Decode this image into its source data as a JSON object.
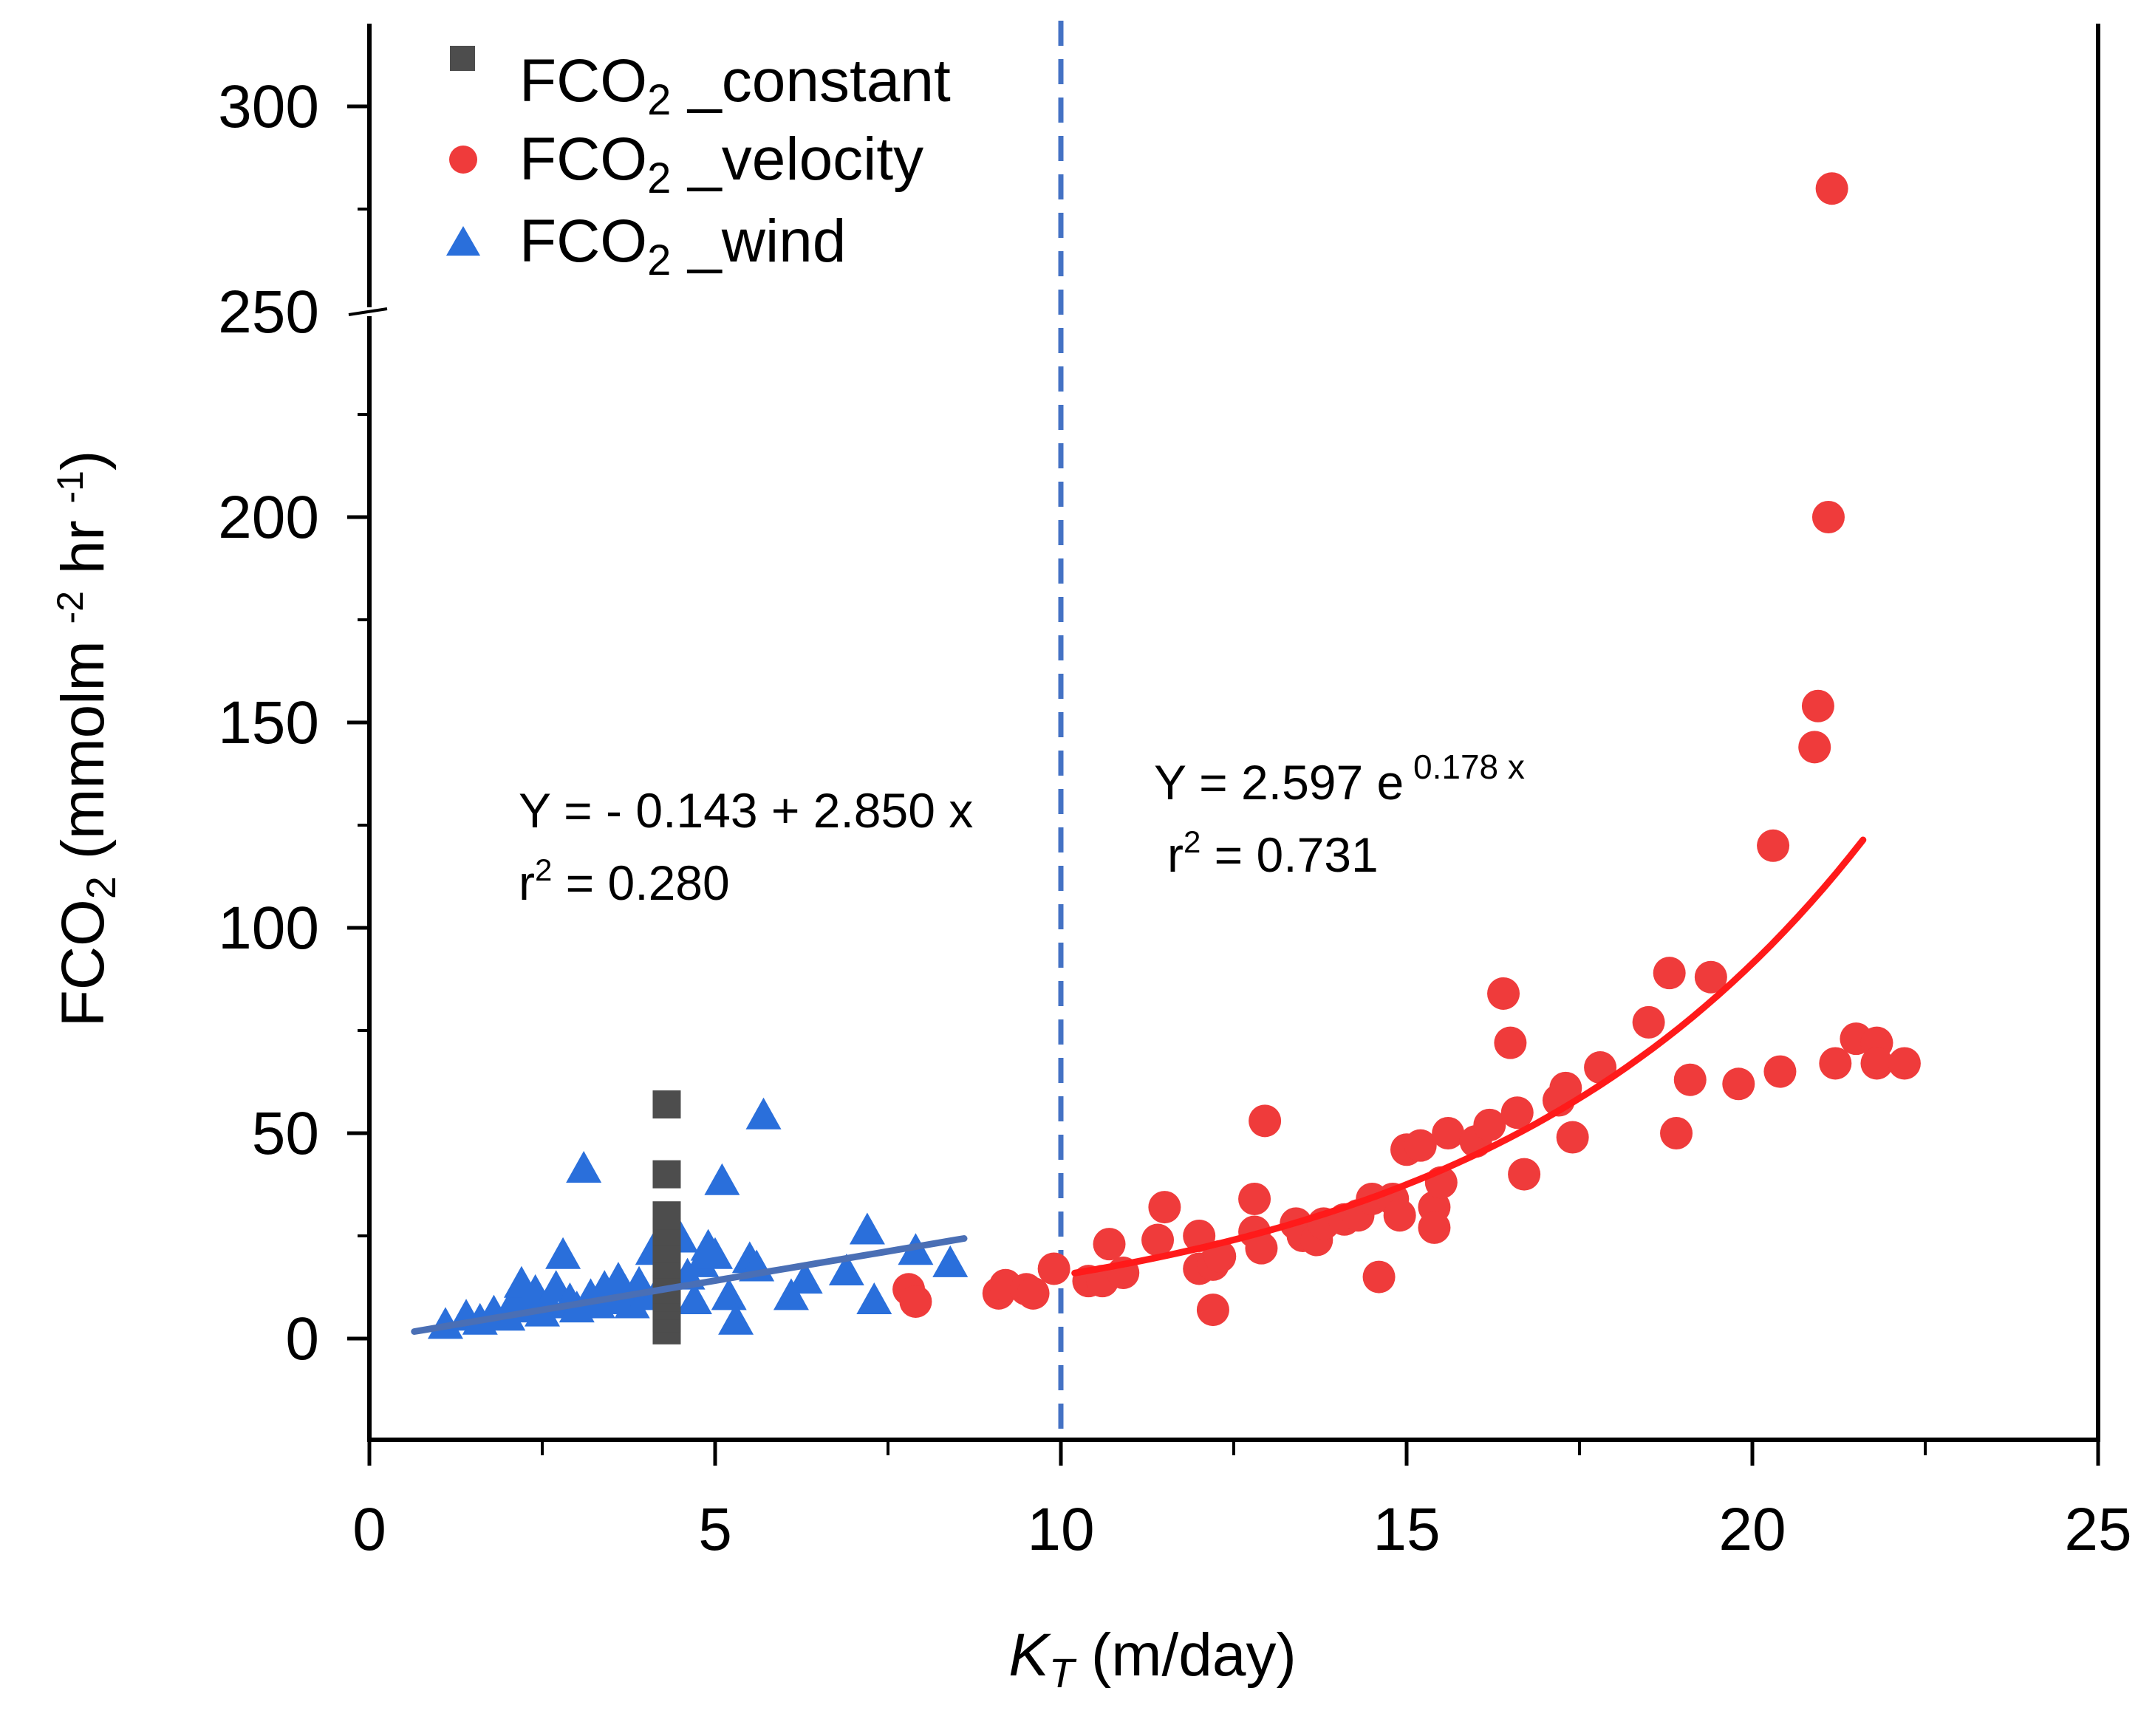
{
  "chart_data": {
    "type": "scatter",
    "title": "",
    "xlabel": {
      "main": "K",
      "sub": "T",
      "unit": " (m/day)"
    },
    "ylabel": {
      "main": "FCO",
      "sub": "2",
      "unit": " (mmolm ",
      "sup1": "-2",
      "mid": " hr ",
      "sup2": "-1",
      "end": ")"
    },
    "xlim": [
      0,
      25
    ],
    "ylim": [
      -25,
      320
    ],
    "x_ticks": [
      "0",
      "5",
      "10",
      "15",
      "20",
      "25"
    ],
    "y_ticks": [
      "0",
      "50",
      "100",
      "150",
      "200",
      "250",
      "300"
    ],
    "legend_position": "top-left",
    "reference_line": {
      "x": 10,
      "style": "dashed",
      "color": "#4472C4"
    },
    "series": [
      {
        "name": "FCO2_constant",
        "label_main": "FCO",
        "label_sub": "2",
        "label_rest": " _constant",
        "marker": "square",
        "color": "#4d4d4d",
        "points": [
          [
            4.3,
            2
          ],
          [
            4.3,
            5
          ],
          [
            4.3,
            8
          ],
          [
            4.3,
            10
          ],
          [
            4.3,
            12
          ],
          [
            4.3,
            15
          ],
          [
            4.3,
            18
          ],
          [
            4.3,
            22
          ],
          [
            4.3,
            26
          ],
          [
            4.3,
            30
          ],
          [
            4.3,
            40
          ],
          [
            4.3,
            57
          ]
        ]
      },
      {
        "name": "FCO2_velocity",
        "label_main": "FCO",
        "label_sub": "2",
        "label_rest": " _velocity",
        "marker": "circle",
        "color": "#EF3B3B",
        "points": [
          [
            7.8,
            12
          ],
          [
            7.9,
            9
          ],
          [
            9.1,
            11
          ],
          [
            9.2,
            13
          ],
          [
            9.5,
            12
          ],
          [
            9.6,
            11
          ],
          [
            9.9,
            17
          ],
          [
            10.4,
            14
          ],
          [
            10.6,
            14
          ],
          [
            10.7,
            23
          ],
          [
            10.9,
            16
          ],
          [
            11.4,
            24
          ],
          [
            11.5,
            32
          ],
          [
            12.0,
            25
          ],
          [
            12.0,
            17
          ],
          [
            12.2,
            7
          ],
          [
            12.2,
            18
          ],
          [
            12.3,
            20
          ],
          [
            12.8,
            34
          ],
          [
            12.8,
            26
          ],
          [
            12.9,
            22
          ],
          [
            12.95,
            53
          ],
          [
            13.4,
            28
          ],
          [
            13.5,
            25
          ],
          [
            13.7,
            24
          ],
          [
            13.8,
            28
          ],
          [
            14.1,
            29
          ],
          [
            14.3,
            30
          ],
          [
            14.5,
            34
          ],
          [
            14.6,
            15
          ],
          [
            14.8,
            34
          ],
          [
            14.9,
            30
          ],
          [
            15.0,
            46
          ],
          [
            15.2,
            47
          ],
          [
            15.4,
            32
          ],
          [
            15.4,
            27
          ],
          [
            15.5,
            38
          ],
          [
            15.6,
            50
          ],
          [
            16.0,
            48
          ],
          [
            16.2,
            52
          ],
          [
            16.4,
            84
          ],
          [
            16.5,
            72
          ],
          [
            16.6,
            55
          ],
          [
            16.7,
            40
          ],
          [
            17.2,
            58
          ],
          [
            17.3,
            61
          ],
          [
            17.4,
            49
          ],
          [
            17.8,
            66
          ],
          [
            18.5,
            77
          ],
          [
            18.8,
            89
          ],
          [
            18.9,
            50
          ],
          [
            19.1,
            63
          ],
          [
            19.4,
            88
          ],
          [
            19.8,
            62
          ],
          [
            20.3,
            120
          ],
          [
            20.4,
            65
          ],
          [
            20.9,
            144
          ],
          [
            20.95,
            154
          ],
          [
            21.1,
            200
          ],
          [
            21.15,
            280
          ],
          [
            21.2,
            67
          ],
          [
            21.5,
            73
          ],
          [
            21.8,
            72
          ],
          [
            21.8,
            67
          ],
          [
            22.2,
            67
          ]
        ]
      },
      {
        "name": "FCO2_wind",
        "label_main": "FCO",
        "label_sub": "2",
        "label_rest": " _wind",
        "marker": "triangle",
        "color": "#2A6FDB",
        "points": [
          [
            1.1,
            3
          ],
          [
            1.4,
            5
          ],
          [
            1.6,
            4
          ],
          [
            1.8,
            6
          ],
          [
            2.0,
            5
          ],
          [
            2.1,
            9
          ],
          [
            2.2,
            13
          ],
          [
            2.3,
            7
          ],
          [
            2.4,
            11
          ],
          [
            2.5,
            6
          ],
          [
            2.6,
            8
          ],
          [
            2.7,
            12
          ],
          [
            2.8,
            20
          ],
          [
            2.9,
            9
          ],
          [
            3.0,
            7
          ],
          [
            3.1,
            41
          ],
          [
            3.2,
            10
          ],
          [
            3.3,
            8
          ],
          [
            3.4,
            12
          ],
          [
            3.5,
            9
          ],
          [
            3.6,
            14
          ],
          [
            3.7,
            11
          ],
          [
            3.8,
            8
          ],
          [
            3.9,
            13
          ],
          [
            4.0,
            10
          ],
          [
            4.1,
            21
          ],
          [
            4.2,
            12
          ],
          [
            4.5,
            24
          ],
          [
            4.6,
            15
          ],
          [
            4.7,
            9
          ],
          [
            4.8,
            18
          ],
          [
            4.9,
            22
          ],
          [
            5.0,
            20
          ],
          [
            5.1,
            38
          ],
          [
            5.2,
            10
          ],
          [
            5.3,
            4
          ],
          [
            5.5,
            19
          ],
          [
            5.6,
            17
          ],
          [
            5.7,
            54
          ],
          [
            6.1,
            10
          ],
          [
            6.3,
            14
          ],
          [
            6.9,
            16
          ],
          [
            7.2,
            26
          ],
          [
            7.3,
            9
          ],
          [
            7.9,
            21
          ],
          [
            8.4,
            18
          ]
        ]
      }
    ],
    "fits": [
      {
        "series": "FCO2_wind",
        "type": "linear",
        "intercept": -0.143,
        "slope": 2.85,
        "x_range": [
          0.65,
          8.6
        ],
        "color": "#4A6FB5",
        "equation_line1": "Y = - 0.143 + 2.850 x",
        "r2_prefix": "r",
        "r2_sup": "2",
        "r2_value": " = 0.280"
      },
      {
        "series": "FCO2_velocity",
        "type": "exponential",
        "a": 2.597,
        "b": 0.178,
        "x_range": [
          10.2,
          21.6
        ],
        "color": "#FF1A1A",
        "equation_base": "Y = 2.597 e",
        "equation_exp": " 0.178 x",
        "r2_prefix": "r",
        "r2_sup": "2",
        "r2_value": " = 0.731"
      }
    ]
  }
}
